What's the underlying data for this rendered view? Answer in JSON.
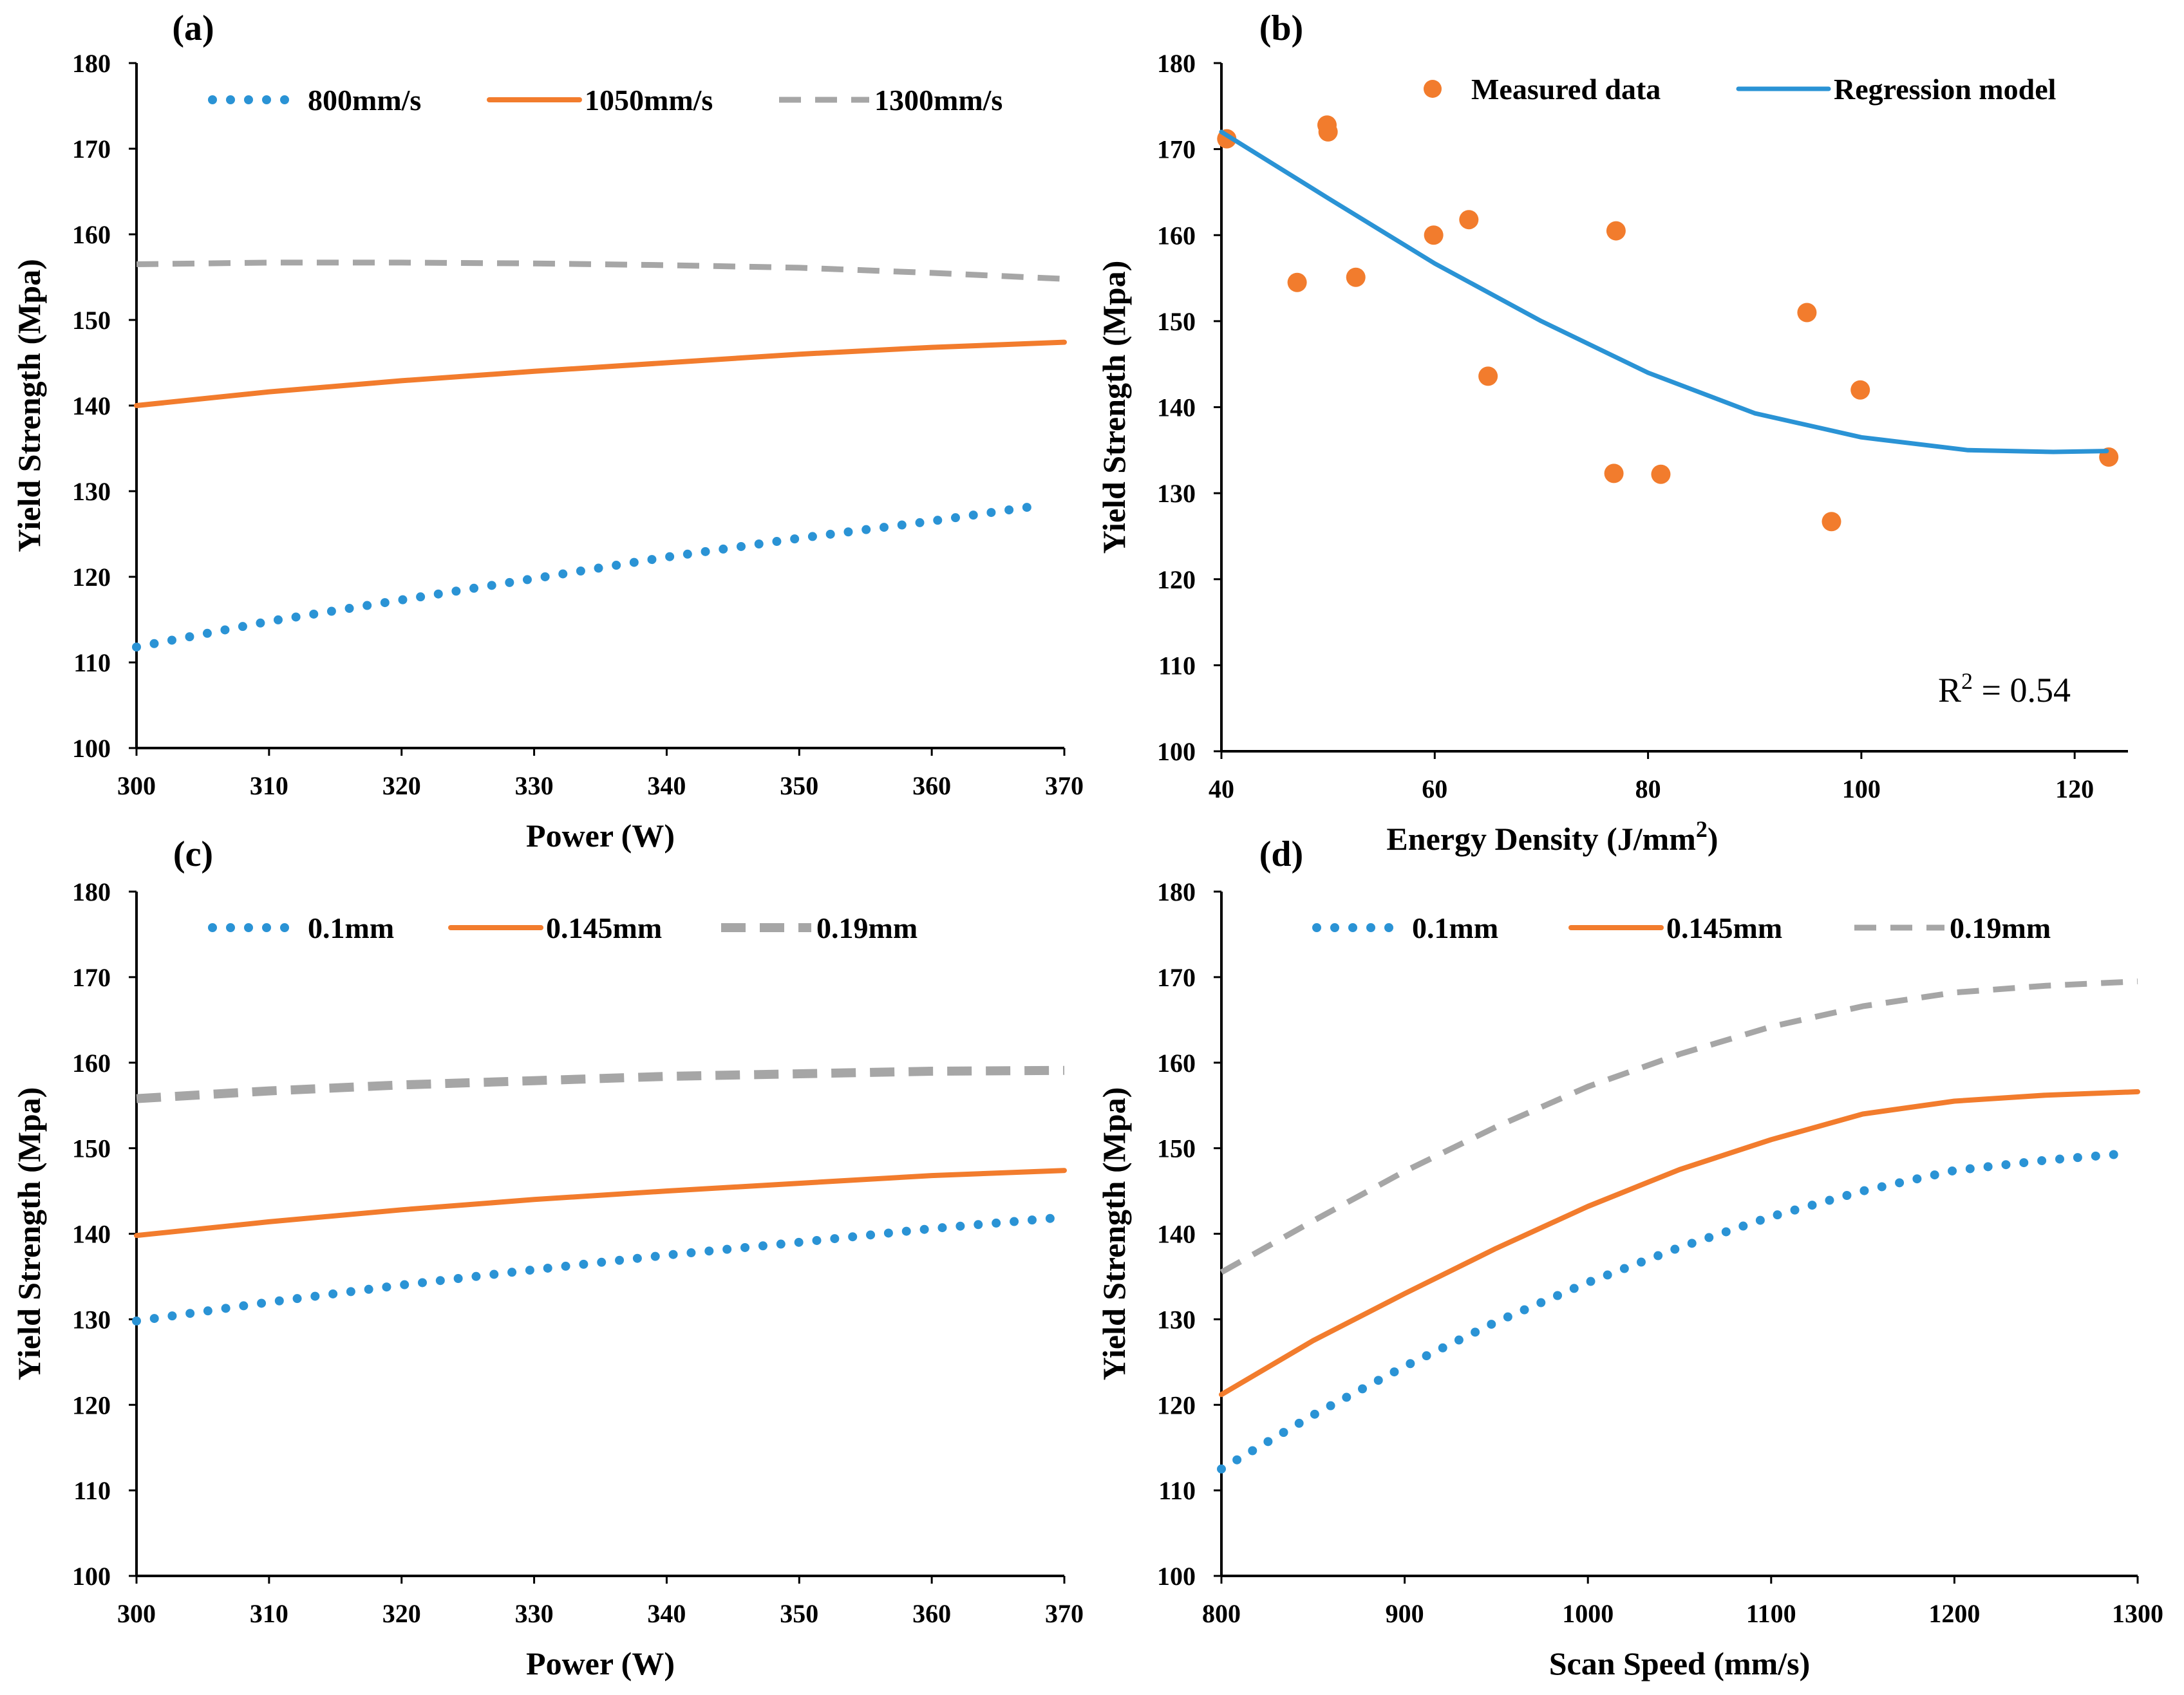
{
  "chart_data": [
    {
      "type": "line",
      "panel": "(a)",
      "title": "",
      "xlabel": "Power (W)",
      "ylabel": "Yield Strength (Mpa)",
      "xlim": [
        300,
        370
      ],
      "ylim": [
        100,
        180
      ],
      "xticks": [
        300,
        310,
        320,
        330,
        340,
        350,
        360,
        370
      ],
      "yticks": [
        100,
        110,
        120,
        130,
        140,
        150,
        160,
        170,
        180
      ],
      "legend_position": "top",
      "series": [
        {
          "name": "800mm/s",
          "style": "dotted",
          "color": "#2a93d5",
          "x": [
            300,
            310,
            320,
            330,
            340,
            350,
            360,
            368
          ],
          "y": [
            111.8,
            114.8,
            117.3,
            119.8,
            122.3,
            124.5,
            126.5,
            128.3
          ]
        },
        {
          "name": "1050mm/s",
          "style": "solid",
          "color": "#f27c2d",
          "x": [
            300,
            310,
            320,
            330,
            340,
            350,
            360,
            370
          ],
          "y": [
            140.0,
            141.6,
            142.9,
            144.0,
            145.0,
            146.0,
            146.8,
            147.4
          ]
        },
        {
          "name": "1300mm/s",
          "style": "dashed",
          "color": "#a6a6a6",
          "x": [
            300,
            310,
            320,
            330,
            340,
            350,
            360,
            370
          ],
          "y": [
            156.5,
            156.7,
            156.7,
            156.6,
            156.4,
            156.1,
            155.5,
            154.8
          ]
        }
      ]
    },
    {
      "type": "scatter",
      "panel": "(b)",
      "title": "",
      "xlabel": "Energy Density (J/mm²)",
      "xlabel_main": "Energy  Density (J/mm",
      "xlabel_sup": "2",
      "xlabel_end": ")",
      "ylabel": "Yield Strength (Mpa)",
      "xlim": [
        40,
        125
      ],
      "ylim": [
        100,
        180
      ],
      "xticks": [
        40,
        60,
        80,
        100,
        120
      ],
      "yticks": [
        100,
        110,
        120,
        130,
        140,
        150,
        160,
        170,
        180
      ],
      "legend_position": "top",
      "annotation": {
        "main": "R",
        "sup": "2",
        "rest": " = 0.54"
      },
      "series": [
        {
          "name": "Measured data",
          "kind": "points",
          "color": "#f27c2d",
          "points": [
            [
              40.5,
              171.2
            ],
            [
              47.1,
              154.5
            ],
            [
              49.9,
              172.8
            ],
            [
              50.0,
              172.0
            ],
            [
              52.6,
              155.1
            ],
            [
              59.9,
              160.0
            ],
            [
              63.2,
              161.8
            ],
            [
              65.0,
              143.6
            ],
            [
              76.8,
              132.3
            ],
            [
              77.0,
              160.5
            ],
            [
              81.2,
              132.2
            ],
            [
              94.9,
              151.0
            ],
            [
              97.2,
              126.7
            ],
            [
              99.9,
              142.0
            ],
            [
              123.2,
              134.2
            ]
          ]
        },
        {
          "name": "Regression model",
          "kind": "curve",
          "color": "#2a93d5",
          "x": [
            40,
            50,
            60,
            70,
            80,
            90,
            100,
            110,
            118,
            123
          ],
          "y": [
            172.0,
            164.3,
            156.7,
            150.0,
            144.0,
            139.3,
            136.5,
            135.0,
            134.8,
            134.9
          ]
        }
      ]
    },
    {
      "type": "line",
      "panel": "(c)",
      "title": "",
      "xlabel": "Power (W)",
      "ylabel": "Yield Strength (Mpa)",
      "xlim": [
        300,
        370
      ],
      "ylim": [
        100,
        180
      ],
      "xticks": [
        300,
        310,
        320,
        330,
        340,
        350,
        360,
        370
      ],
      "yticks": [
        100,
        110,
        120,
        130,
        140,
        150,
        160,
        170,
        180
      ],
      "legend_position": "top",
      "series": [
        {
          "name": "0.1mm",
          "style": "dotted",
          "color": "#2a93d5",
          "x": [
            300,
            310,
            320,
            330,
            340,
            350,
            360,
            369
          ],
          "y": [
            129.8,
            132.0,
            134.0,
            135.8,
            137.5,
            139.0,
            140.6,
            141.8
          ]
        },
        {
          "name": "0.145mm",
          "style": "solid",
          "color": "#f27c2d",
          "x": [
            300,
            310,
            320,
            330,
            340,
            350,
            360,
            370
          ],
          "y": [
            139.8,
            141.4,
            142.8,
            144.0,
            145.0,
            145.9,
            146.8,
            147.4
          ]
        },
        {
          "name": "0.19mm",
          "style": "dashed-thick",
          "color": "#a6a6a6",
          "x": [
            300,
            310,
            320,
            330,
            340,
            350,
            360,
            370
          ],
          "y": [
            155.8,
            156.7,
            157.4,
            157.9,
            158.4,
            158.7,
            159.0,
            159.1
          ]
        }
      ]
    },
    {
      "type": "line",
      "panel": "(d)",
      "title": "",
      "xlabel": "Scan Speed (mm/s)",
      "ylabel": "Yield Strength (Mpa)",
      "xlim": [
        800,
        1300
      ],
      "ylim": [
        100,
        180
      ],
      "xticks": [
        800,
        900,
        1000,
        1100,
        1200,
        1300
      ],
      "yticks": [
        100,
        110,
        120,
        130,
        140,
        150,
        160,
        170,
        180
      ],
      "legend_position": "top",
      "series": [
        {
          "name": "0.1mm",
          "style": "dotted",
          "color": "#2a93d5",
          "x": [
            800,
            850,
            900,
            950,
            1000,
            1050,
            1100,
            1150,
            1200,
            1250,
            1295
          ],
          "y": [
            112.5,
            118.8,
            124.5,
            129.7,
            134.3,
            138.4,
            142.0,
            145.0,
            147.4,
            148.6,
            149.4
          ]
        },
        {
          "name": "0.145mm",
          "style": "solid",
          "color": "#f27c2d",
          "x": [
            800,
            850,
            900,
            950,
            1000,
            1050,
            1100,
            1150,
            1200,
            1250,
            1300
          ],
          "y": [
            121.2,
            127.5,
            133.0,
            138.3,
            143.2,
            147.5,
            151.0,
            154.0,
            155.5,
            156.2,
            156.6
          ]
        },
        {
          "name": "0.19mm",
          "style": "dashed",
          "color": "#a6a6a6",
          "x": [
            800,
            850,
            900,
            950,
            1000,
            1050,
            1100,
            1150,
            1200,
            1250,
            1300
          ],
          "y": [
            135.5,
            141.5,
            147.3,
            152.5,
            157.2,
            161.0,
            164.2,
            166.6,
            168.2,
            169.0,
            169.5
          ]
        }
      ]
    }
  ]
}
